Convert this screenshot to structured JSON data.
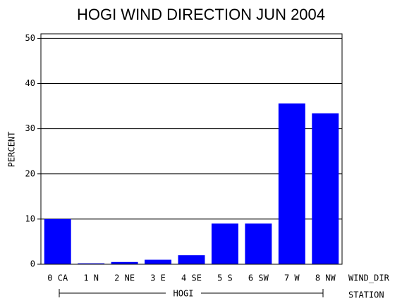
{
  "chart_data": {
    "type": "bar",
    "title": "HOGI WIND DIRECTION JUN 2004",
    "y_label": "PERCENT",
    "x_label": "WIND_DIR",
    "group_label": "HOGI",
    "group_axis_label": "STATION",
    "categories": [
      "0 CA",
      "1 N",
      "2 NE",
      "3 E",
      "4 SE",
      "5 S",
      "6 SW",
      "7 W",
      "8 NW"
    ],
    "values": [
      10,
      0.2,
      0.5,
      1,
      2,
      9,
      9,
      35.6,
      33.4
    ],
    "color": "#0000ff",
    "ylim": [
      0,
      51
    ],
    "yticks": [
      0,
      10,
      20,
      30,
      40,
      50
    ],
    "grid": true
  }
}
